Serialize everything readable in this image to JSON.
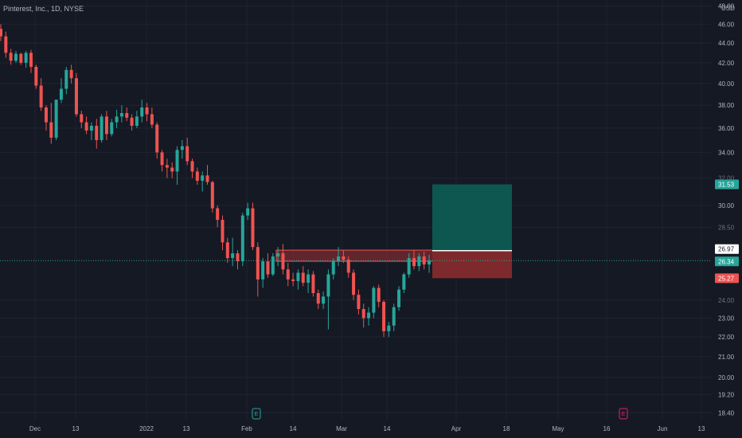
{
  "chart_data": {
    "type": "candlestick",
    "title": "Pinterest, Inc., 1D, NYSE",
    "currency": "USD",
    "price_axis": {
      "scale": "log",
      "ticks": [
        "48.00",
        "46.00",
        "44.00",
        "42.00",
        "40.00",
        "38.00",
        "36.00",
        "34.00",
        "32.00",
        "30.00",
        "28.50",
        "24.00",
        "23.00",
        "22.00",
        "21.00",
        "20.00",
        "19.20",
        "18.40"
      ],
      "range": [
        18.0,
        48.5
      ]
    },
    "time_axis": {
      "labels": [
        "Dec",
        "13",
        "2022",
        "13",
        "Feb",
        "14",
        "Mar",
        "14",
        "Apr",
        "18",
        "May",
        "16",
        "Jun",
        "13"
      ]
    },
    "price_labels": [
      {
        "value": "31.53",
        "role": "target"
      },
      {
        "value": "26.97",
        "role": "entry"
      },
      {
        "value": "26.34",
        "role": "last"
      },
      {
        "value": "25.27",
        "role": "stop"
      }
    ],
    "position": {
      "entry": 26.97,
      "target": 31.53,
      "stop": 25.27
    },
    "resistance_zone": [
      26.3,
      27.0
    ],
    "events": [
      {
        "label": "E",
        "type": "earnings"
      },
      {
        "label": "E",
        "type": "earnings"
      }
    ],
    "candles": [
      [
        45.5,
        46.0,
        44.2,
        44.7
      ],
      [
        44.7,
        45.2,
        42.5,
        43.0
      ],
      [
        43.0,
        43.4,
        41.8,
        42.2
      ],
      [
        42.2,
        43.2,
        42.0,
        42.9
      ],
      [
        42.9,
        43.0,
        41.8,
        42.0
      ],
      [
        42.0,
        43.2,
        41.5,
        43.0
      ],
      [
        43.0,
        43.3,
        41.0,
        41.6
      ],
      [
        41.6,
        41.8,
        39.5,
        39.8
      ],
      [
        39.8,
        40.5,
        37.5,
        37.8
      ],
      [
        37.8,
        38.0,
        35.8,
        36.5
      ],
      [
        36.5,
        38.2,
        34.7,
        35.2
      ],
      [
        35.2,
        38.5,
        35.0,
        38.5
      ],
      [
        38.5,
        40.5,
        38.2,
        39.5
      ],
      [
        39.5,
        41.6,
        39.0,
        41.3
      ],
      [
        41.3,
        41.8,
        40.0,
        40.5
      ],
      [
        40.5,
        41.0,
        37.0,
        37.2
      ],
      [
        37.2,
        37.5,
        36.0,
        36.5
      ],
      [
        36.5,
        37.0,
        35.5,
        35.8
      ],
      [
        35.8,
        36.5,
        35.0,
        36.2
      ],
      [
        36.2,
        36.8,
        34.3,
        35.0
      ],
      [
        35.0,
        37.2,
        34.8,
        37.0
      ],
      [
        37.0,
        37.5,
        35.0,
        35.5
      ],
      [
        35.5,
        36.8,
        35.3,
        36.5
      ],
      [
        36.5,
        37.6,
        36.0,
        37.0
      ],
      [
        37.0,
        38.0,
        36.5,
        37.3
      ],
      [
        37.3,
        37.8,
        36.6,
        36.9
      ],
      [
        36.9,
        37.2,
        35.8,
        36.2
      ],
      [
        36.2,
        37.5,
        36.0,
        37.0
      ],
      [
        37.0,
        38.5,
        36.5,
        37.8
      ],
      [
        37.8,
        38.2,
        36.6,
        37.2
      ],
      [
        37.2,
        37.8,
        36.0,
        36.3
      ],
      [
        36.3,
        36.5,
        33.5,
        34.0
      ],
      [
        34.0,
        34.2,
        32.5,
        33.0
      ],
      [
        33.0,
        33.5,
        32.0,
        32.8
      ],
      [
        32.8,
        33.2,
        32.0,
        32.5
      ],
      [
        32.5,
        34.5,
        31.5,
        34.2
      ],
      [
        34.2,
        35.0,
        33.5,
        34.5
      ],
      [
        34.5,
        35.2,
        33.0,
        33.3
      ],
      [
        33.3,
        33.5,
        32.0,
        32.5
      ],
      [
        32.5,
        32.8,
        31.5,
        31.8
      ],
      [
        31.8,
        32.5,
        31.0,
        32.2
      ],
      [
        32.2,
        33.0,
        31.5,
        31.7
      ],
      [
        31.7,
        31.8,
        29.5,
        29.8
      ],
      [
        29.8,
        30.0,
        28.5,
        29.0
      ],
      [
        29.0,
        29.3,
        27.0,
        27.5
      ],
      [
        27.5,
        27.8,
        26.2,
        26.5
      ],
      [
        26.5,
        27.8,
        26.0,
        26.8
      ],
      [
        26.8,
        27.0,
        25.8,
        26.3
      ],
      [
        26.3,
        29.5,
        26.0,
        29.3
      ],
      [
        29.3,
        30.2,
        29.0,
        29.8
      ],
      [
        29.8,
        30.2,
        27.0,
        27.2
      ],
      [
        27.2,
        27.5,
        24.2,
        25.2
      ],
      [
        25.2,
        26.5,
        24.7,
        26.3
      ],
      [
        26.3,
        26.8,
        25.3,
        25.5
      ],
      [
        25.5,
        26.8,
        25.4,
        26.6
      ],
      [
        26.6,
        27.2,
        26.0,
        26.8
      ],
      [
        26.8,
        27.4,
        25.5,
        25.8
      ],
      [
        25.8,
        26.2,
        24.8,
        25.2
      ],
      [
        25.2,
        25.6,
        24.8,
        25.1
      ],
      [
        25.1,
        25.8,
        24.6,
        25.6
      ],
      [
        25.6,
        26.0,
        24.8,
        25.0
      ],
      [
        25.0,
        25.8,
        24.4,
        25.5
      ],
      [
        25.5,
        25.7,
        24.2,
        24.4
      ],
      [
        24.4,
        24.6,
        23.5,
        23.8
      ],
      [
        23.8,
        24.5,
        23.5,
        24.2
      ],
      [
        24.2,
        25.8,
        22.4,
        25.5
      ],
      [
        25.5,
        26.5,
        25.2,
        26.3
      ],
      [
        26.3,
        27.2,
        26.0,
        26.6
      ],
      [
        26.6,
        27.0,
        26.2,
        26.4
      ],
      [
        26.4,
        26.6,
        25.3,
        25.6
      ],
      [
        25.6,
        25.8,
        24.0,
        24.3
      ],
      [
        24.3,
        24.6,
        23.2,
        23.5
      ],
      [
        23.5,
        23.8,
        22.5,
        23.0
      ],
      [
        23.0,
        23.6,
        22.6,
        23.3
      ],
      [
        23.3,
        24.8,
        23.0,
        24.7
      ],
      [
        24.7,
        24.9,
        23.6,
        23.9
      ],
      [
        23.9,
        24.0,
        22.0,
        22.3
      ],
      [
        22.3,
        22.8,
        22.0,
        22.6
      ],
      [
        22.6,
        23.8,
        22.3,
        23.6
      ],
      [
        23.6,
        24.8,
        23.4,
        24.6
      ],
      [
        24.6,
        25.6,
        24.4,
        25.5
      ],
      [
        25.5,
        26.8,
        25.3,
        26.5
      ],
      [
        26.5,
        27.0,
        25.8,
        26.0
      ],
      [
        26.0,
        26.8,
        25.7,
        26.6
      ],
      [
        26.6,
        26.9,
        25.8,
        26.1
      ],
      [
        26.1,
        26.7,
        25.6,
        26.34
      ]
    ]
  },
  "colors": {
    "up": "#26a69a",
    "down": "#ef5350",
    "background": "#151924",
    "grid": "#1f2431",
    "axis_text": "#b2b5be",
    "target_zone": "#0d5750",
    "stop_zone": "#7e2a2c",
    "resistance_zone": "#7a2b31",
    "earnings_badge": "#26a69a",
    "dividend_badge": "#e91e63"
  }
}
